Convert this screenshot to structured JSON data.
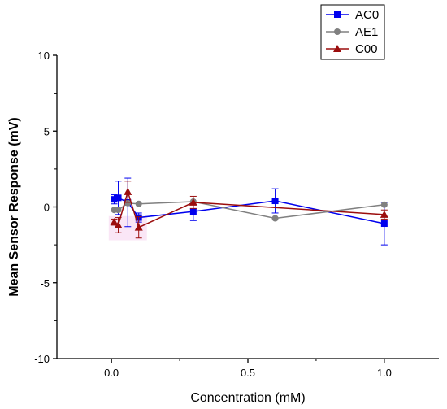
{
  "chart_data": {
    "type": "line",
    "title": "",
    "xlabel": "Concentration (mM)",
    "ylabel": "Mean Sensor Response (mV)",
    "xlim": [
      -0.2,
      1.2
    ],
    "ylim": [
      -10,
      10
    ],
    "xticks": [
      0.0,
      0.5,
      1.0
    ],
    "xtick_labels": [
      "0.0",
      "0.5",
      "1.0"
    ],
    "yticks": [
      -10,
      -5,
      0,
      5,
      10
    ],
    "ytick_labels": [
      "-10",
      "-5",
      "0",
      "5",
      "10"
    ],
    "grid": false,
    "legend_position": "top-right",
    "series": [
      {
        "name": "AC0",
        "color": "#0000ee",
        "marker": "square",
        "x": [
          0.01,
          0.025,
          0.06,
          0.1,
          0.3,
          0.6,
          1.0
        ],
        "y": [
          0.5,
          0.6,
          0.3,
          -0.7,
          -0.3,
          0.4,
          -1.1
        ],
        "err": [
          0.3,
          1.1,
          1.6,
          0.3,
          0.6,
          0.8,
          1.4
        ]
      },
      {
        "name": "AE1",
        "color": "#808080",
        "marker": "circle",
        "x": [
          0.01,
          0.025,
          0.06,
          0.1,
          0.3,
          0.6,
          1.0
        ],
        "y": [
          -0.2,
          -0.2,
          0.25,
          0.2,
          0.35,
          -0.75,
          0.15
        ],
        "err": [
          0.0,
          0.0,
          0.0,
          0.0,
          0.0,
          0.0,
          0.0
        ]
      },
      {
        "name": "C00",
        "color": "#9b0d0d",
        "marker": "triangle",
        "x": [
          0.01,
          0.025,
          0.06,
          0.1,
          0.3,
          1.0
        ],
        "y": [
          -1.0,
          -1.2,
          1.0,
          -1.35,
          0.3,
          -0.5
        ],
        "err": [
          0.2,
          0.5,
          0.7,
          0.7,
          0.4,
          0.3
        ]
      }
    ]
  }
}
